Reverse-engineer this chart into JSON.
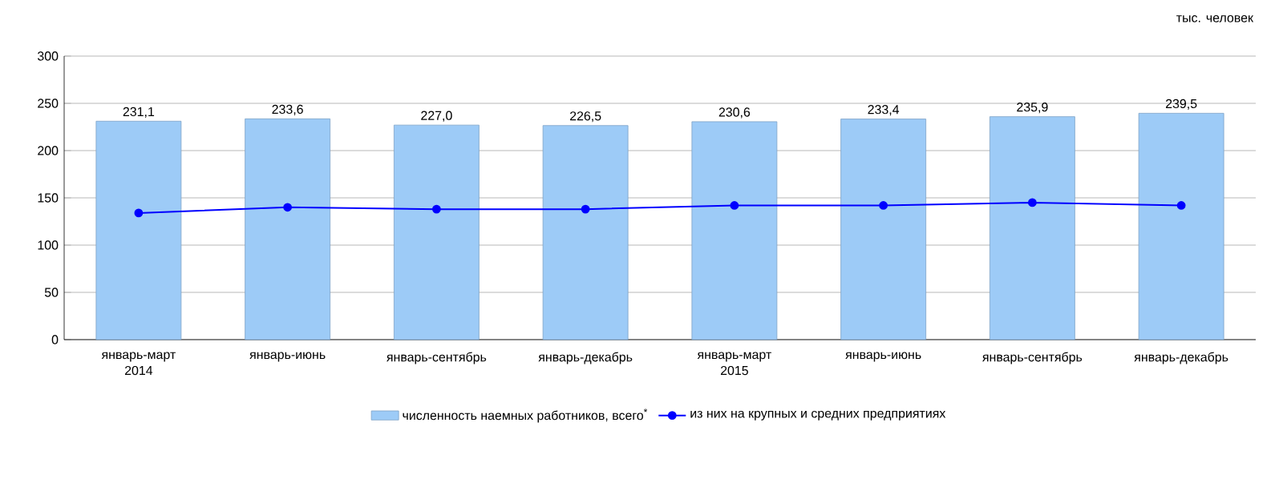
{
  "chart_data": {
    "type": "bar",
    "categories": [
      "январь-март 2014",
      "январь-июнь",
      "январь-сентябрь",
      "январь-декабрь",
      "январь-март 2015",
      "январь-июнь",
      "январь-сентябрь",
      "январь-декабрь"
    ],
    "series": [
      {
        "name": "численность наемных работников, всего$^{*}$",
        "color": "#9dcbf7",
        "values": [
          231.1,
          233.6,
          227.0,
          226.5,
          230.6,
          233.4,
          235.9,
          239.5
        ],
        "value_labels": [
          "231,1",
          "233,6",
          "227,0",
          "226,5",
          "230,6",
          "233,4",
          "235,9",
          "239,5"
        ]
      },
      {
        "type": "line",
        "name": "из них на крупных и средних предприятиях",
        "color": "#0000ff",
        "marker": "circle",
        "values": [
          134,
          140,
          138,
          138,
          142,
          142,
          145,
          142
        ]
      }
    ],
    "ylim": [
      0,
      300
    ],
    "yticks": [
      0,
      50,
      100,
      150,
      200,
      250,
      300
    ],
    "grid": "y",
    "legend": "bottom",
    "annotations": [
      "тыс. человек"
    ]
  }
}
